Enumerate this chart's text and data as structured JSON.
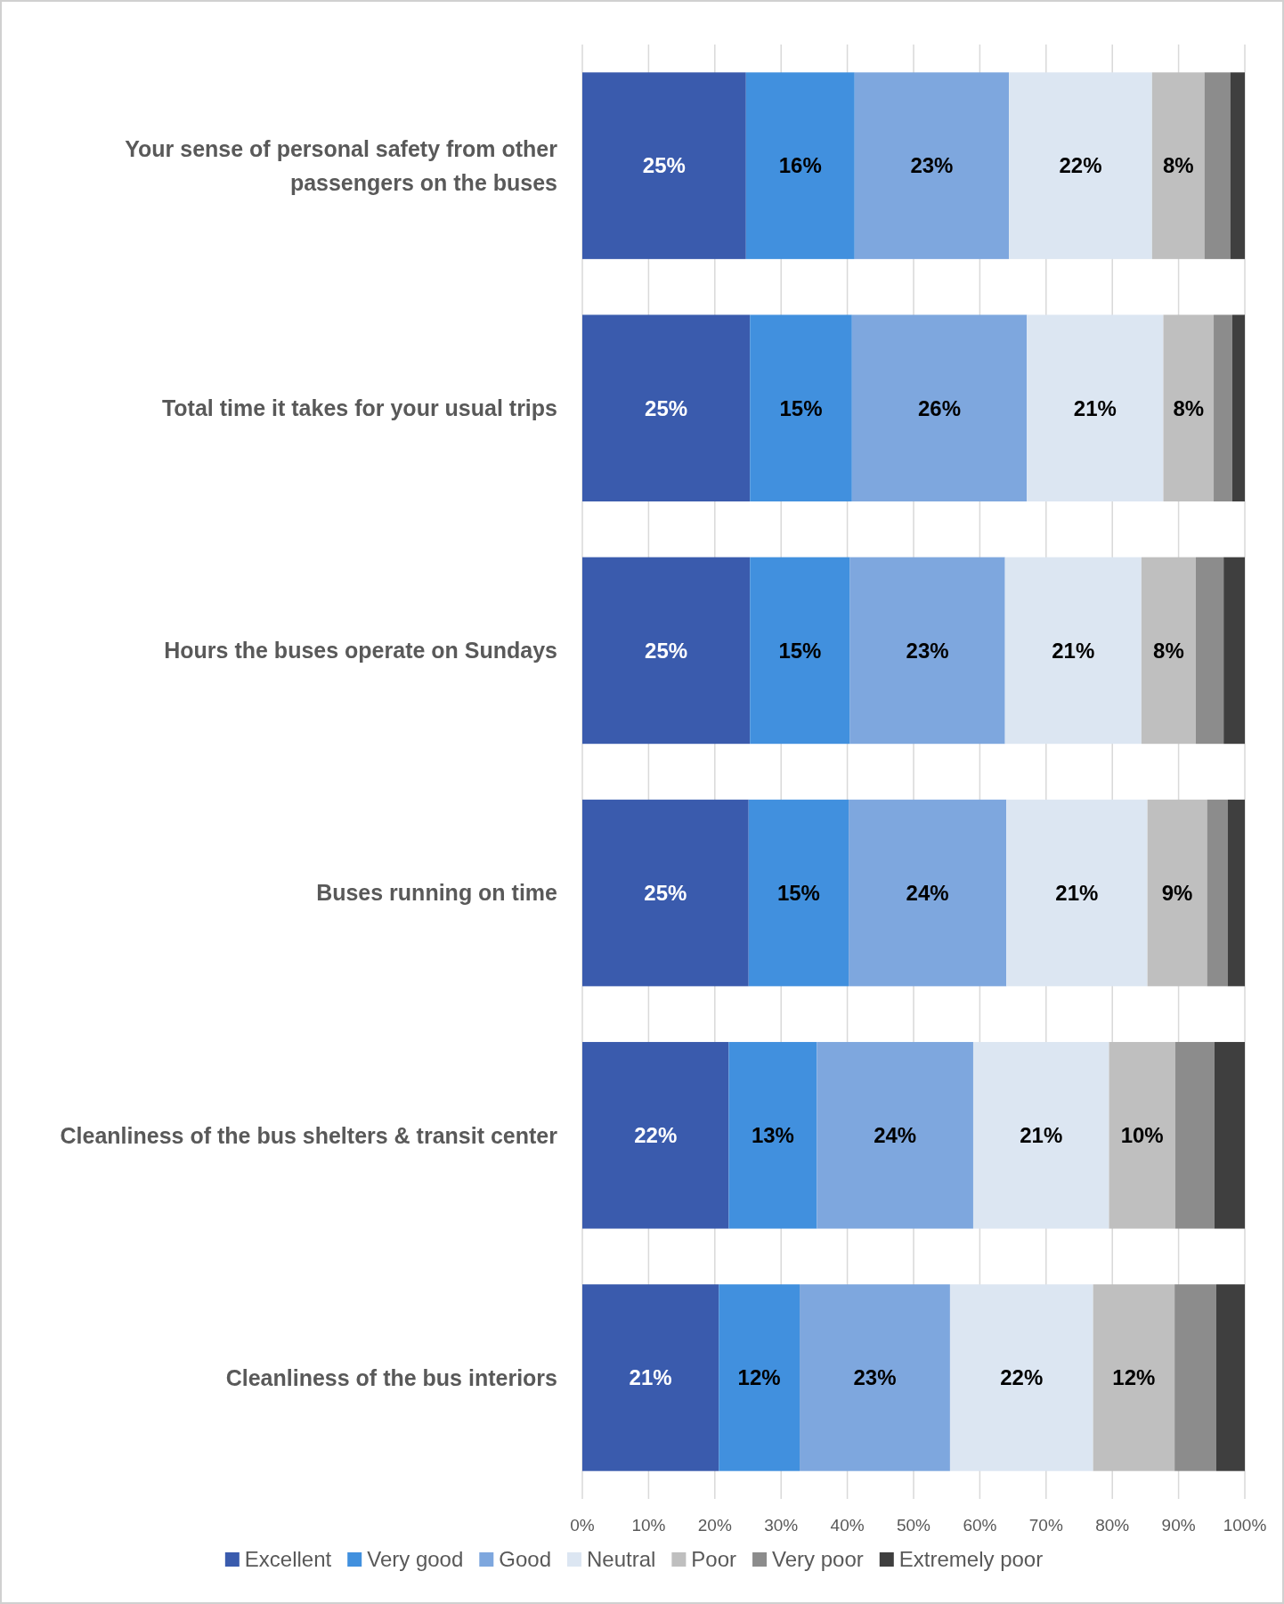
{
  "chart_data": {
    "type": "bar",
    "orientation": "horizontal",
    "stacked": true,
    "categories": [
      "Your sense of personal safety from other passengers on the buses",
      "Total time it takes for your usual trips",
      "Hours the buses operate on Sundays",
      "Buses running on time",
      "Cleanliness of the bus shelters & transit center",
      "Cleanliness of the bus interiors"
    ],
    "series": [
      {
        "name": "Excellent",
        "color": "#3a5bad",
        "values": [
          24.7,
          25.3,
          25.3,
          25.1,
          22.1,
          20.6
        ],
        "value_labels": [
          "25%",
          "25%",
          "25%",
          "25%",
          "22%",
          "21%"
        ]
      },
      {
        "name": "Very good",
        "color": "#4190de",
        "values": [
          16.4,
          15.4,
          15.1,
          15.1,
          13.3,
          12.2
        ],
        "value_labels": [
          "16%",
          "15%",
          "15%",
          "15%",
          "13%",
          "12%"
        ]
      },
      {
        "name": "Good",
        "color": "#7ea7de",
        "values": [
          23.3,
          26.4,
          23.4,
          23.8,
          23.6,
          22.7
        ],
        "value_labels": [
          "23%",
          "26%",
          "23%",
          "24%",
          "24%",
          "23%"
        ]
      },
      {
        "name": "Neutral",
        "color": "#dce6f2",
        "values": [
          21.6,
          20.6,
          20.6,
          21.3,
          20.5,
          21.6
        ],
        "value_labels": [
          "22%",
          "21%",
          "21%",
          "21%",
          "21%",
          "22%"
        ]
      },
      {
        "name": "Poor",
        "color": "#bfbfbf",
        "values": [
          7.9,
          7.6,
          8.2,
          9.0,
          10.0,
          12.3
        ],
        "value_labels": [
          "8%",
          "8%",
          "8%",
          "9%",
          "10%",
          "12%"
        ]
      },
      {
        "name": "Very poor",
        "color": "#8c8c8c",
        "values": [
          3.9,
          2.8,
          4.2,
          3.1,
          5.9,
          6.3
        ]
      },
      {
        "name": "Extremely poor",
        "color": "#3f3f3f",
        "values": [
          2.2,
          1.9,
          3.2,
          2.6,
          4.6,
          4.3
        ]
      }
    ],
    "xlim": [
      0,
      100
    ],
    "xticks": [
      {
        "value": 0,
        "label": "0%"
      },
      {
        "value": 10,
        "label": "10%"
      },
      {
        "value": 20,
        "label": "20%"
      },
      {
        "value": 30,
        "label": "30%"
      },
      {
        "value": 40,
        "label": "40%"
      },
      {
        "value": 50,
        "label": "50%"
      },
      {
        "value": 60,
        "label": "60%"
      },
      {
        "value": 70,
        "label": "70%"
      },
      {
        "value": 80,
        "label": "80%"
      },
      {
        "value": 90,
        "label": "90%"
      },
      {
        "value": 100,
        "label": "100%"
      }
    ],
    "grid": "x",
    "legend": "bottom"
  }
}
